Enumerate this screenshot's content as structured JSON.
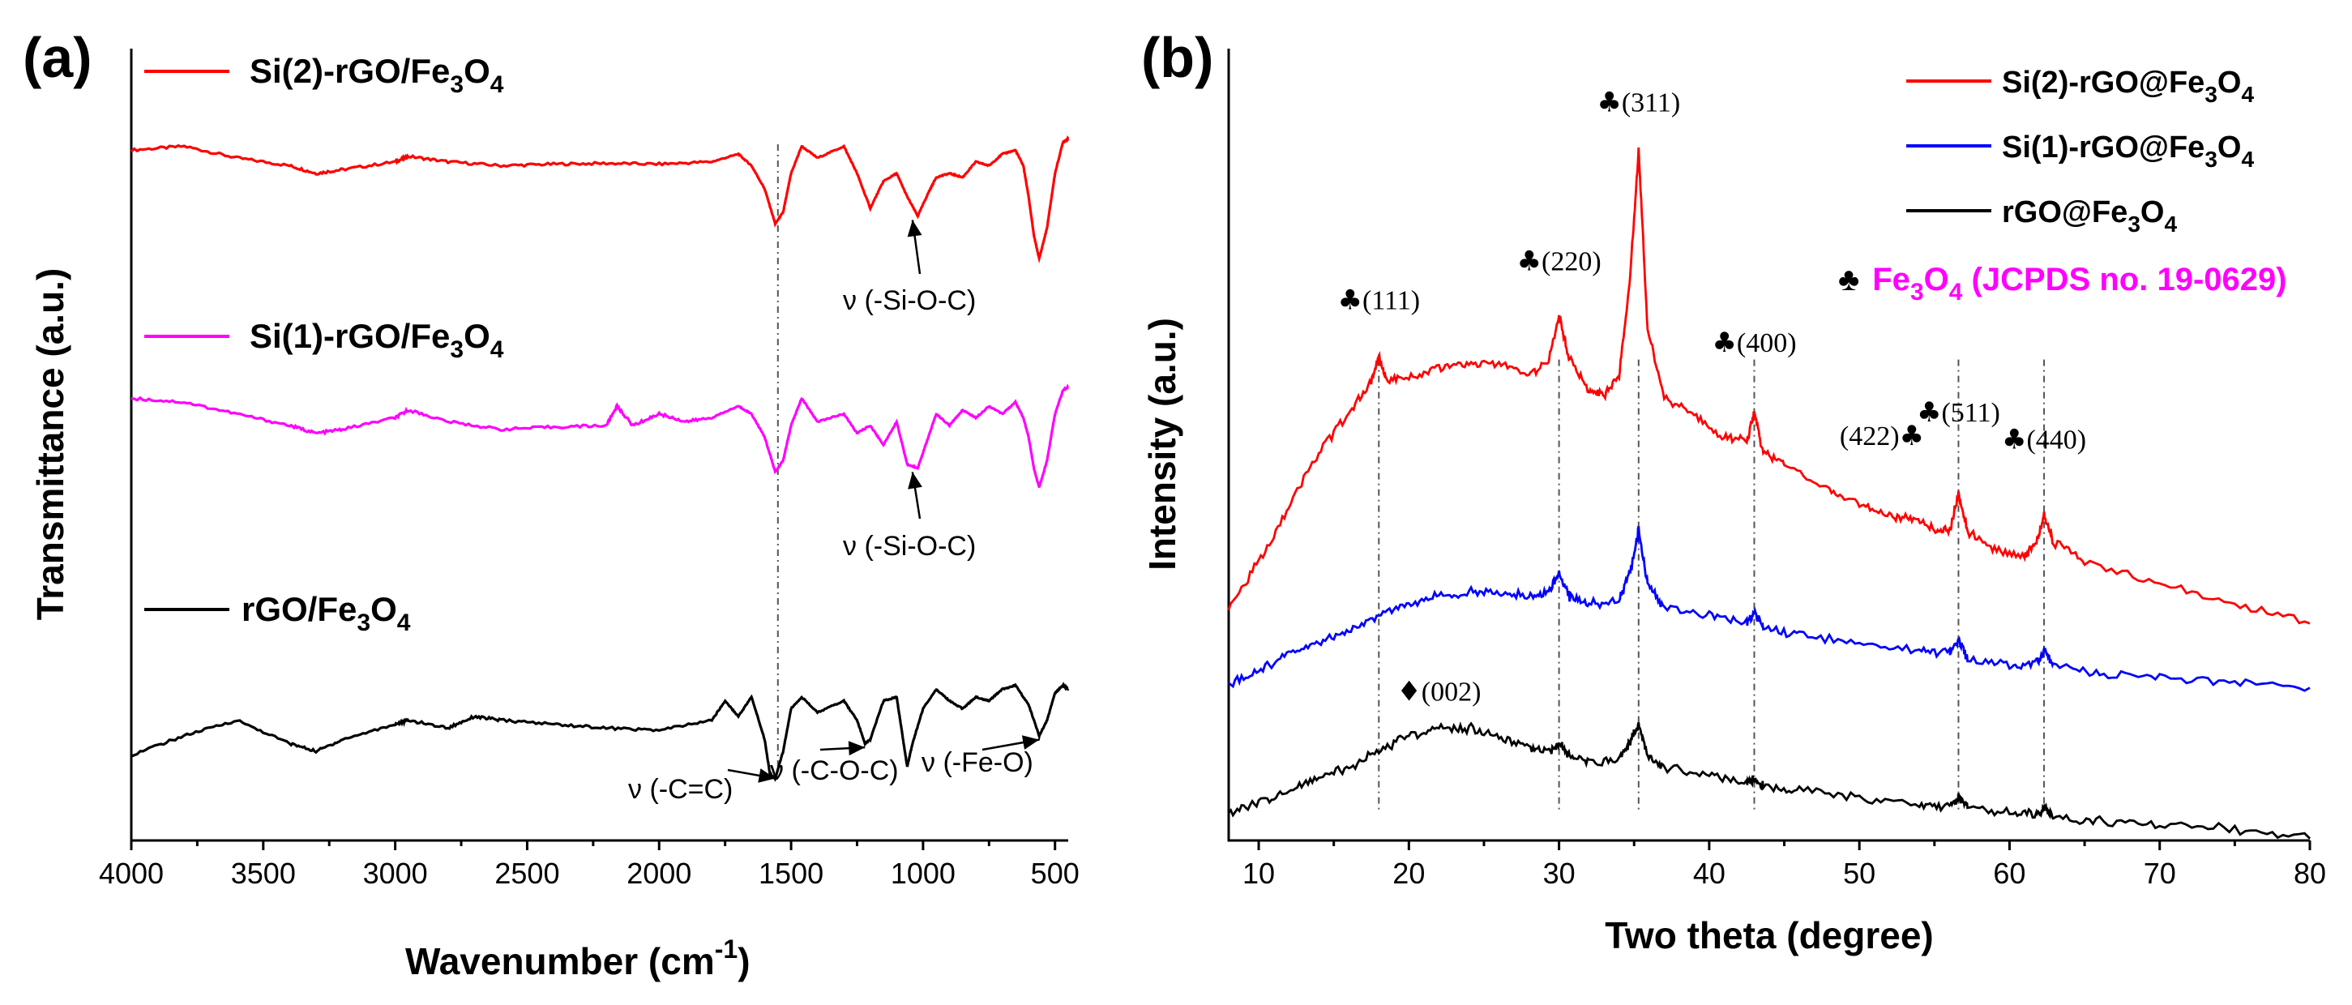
{
  "chart_data": [
    {
      "panel": "(a)",
      "type": "line",
      "title": "",
      "xlabel": "Wavenumber (cm-1)",
      "xlabel_main": "Wavenumber (cm",
      "xlabel_sup": "-1",
      "xlabel_close": ")",
      "ylabel": "Transmittance (a.u.)",
      "xlim": [
        4000,
        450
      ],
      "ylim": [
        0,
        10
      ],
      "xticks": [
        4000,
        3500,
        3000,
        2500,
        2000,
        1500,
        1000,
        500
      ],
      "grid": false,
      "legend_placement": "inline",
      "series": [
        {
          "name": "Si(2)-rGO/Fe3O4",
          "label_main": "Si(2)-rGO/Fe",
          "label_sub1": "3",
          "label_mid": "O",
          "label_sub2": "4",
          "color": "#ff0000",
          "x": [
            4000,
            3800,
            3600,
            3400,
            3300,
            3200,
            3000,
            2950,
            2800,
            2600,
            2400,
            2200,
            2000,
            1800,
            1700,
            1650,
            1600,
            1560,
            1530,
            1500,
            1460,
            1400,
            1300,
            1250,
            1200,
            1150,
            1100,
            1060,
            1020,
            980,
            950,
            900,
            850,
            800,
            750,
            700,
            650,
            620,
            600,
            580,
            560,
            530,
            500,
            470,
            450
          ],
          "y": [
            8.9,
            8.95,
            8.8,
            8.7,
            8.6,
            8.65,
            8.75,
            8.82,
            8.75,
            8.7,
            8.72,
            8.73,
            8.72,
            8.75,
            8.85,
            8.7,
            8.4,
            7.95,
            8.1,
            8.6,
            8.95,
            8.8,
            8.95,
            8.6,
            8.15,
            8.5,
            8.6,
            8.3,
            8.05,
            8.35,
            8.55,
            8.6,
            8.55,
            8.75,
            8.7,
            8.85,
            8.9,
            8.7,
            8.3,
            7.8,
            7.5,
            7.9,
            8.6,
            9.0,
            9.05
          ]
        },
        {
          "name": "Si(1)-rGO/Fe3O4",
          "label_main": "Si(1)-rGO/Fe",
          "label_sub1": "3",
          "label_mid": "O",
          "label_sub2": "4",
          "color": "#ff00ff",
          "x": [
            4000,
            3800,
            3600,
            3400,
            3300,
            3200,
            3000,
            2950,
            2800,
            2600,
            2400,
            2200,
            2160,
            2100,
            2000,
            1900,
            1800,
            1700,
            1650,
            1600,
            1560,
            1530,
            1500,
            1460,
            1400,
            1300,
            1250,
            1200,
            1150,
            1100,
            1060,
            1020,
            980,
            950,
            900,
            850,
            800,
            750,
            700,
            650,
            620,
            600,
            580,
            560,
            530,
            500,
            470,
            450
          ],
          "y": [
            5.7,
            5.65,
            5.5,
            5.35,
            5.25,
            5.3,
            5.45,
            5.55,
            5.4,
            5.3,
            5.33,
            5.35,
            5.6,
            5.35,
            5.5,
            5.4,
            5.45,
            5.6,
            5.5,
            5.2,
            4.75,
            4.9,
            5.35,
            5.7,
            5.4,
            5.5,
            5.25,
            5.35,
            5.1,
            5.4,
            4.85,
            4.8,
            5.2,
            5.5,
            5.35,
            5.55,
            5.45,
            5.6,
            5.5,
            5.65,
            5.45,
            5.2,
            4.8,
            4.55,
            4.9,
            5.5,
            5.8,
            5.85
          ]
        },
        {
          "name": "rGO/Fe3O4",
          "label_main": "rGO/Fe",
          "label_sub1": "3",
          "label_mid": "O",
          "label_sub2": "4",
          "color": "#000000",
          "x": [
            4000,
            3800,
            3600,
            3400,
            3300,
            3200,
            3000,
            2950,
            2800,
            2700,
            2600,
            2400,
            2200,
            2000,
            1800,
            1750,
            1700,
            1650,
            1600,
            1580,
            1560,
            1530,
            1500,
            1460,
            1400,
            1300,
            1250,
            1220,
            1200,
            1150,
            1100,
            1080,
            1060,
            1040,
            1000,
            950,
            900,
            850,
            800,
            750,
            700,
            650,
            600,
            560,
            530,
            500,
            470,
            450
          ],
          "y": [
            1.1,
            1.35,
            1.55,
            1.25,
            1.15,
            1.3,
            1.5,
            1.55,
            1.45,
            1.6,
            1.55,
            1.5,
            1.45,
            1.42,
            1.55,
            1.8,
            1.6,
            1.85,
            1.3,
            0.85,
            0.8,
            1.15,
            1.7,
            1.85,
            1.65,
            1.8,
            1.55,
            1.25,
            1.3,
            1.8,
            1.85,
            1.4,
            0.95,
            1.25,
            1.7,
            1.95,
            1.8,
            1.7,
            1.85,
            1.8,
            1.95,
            2.0,
            1.75,
            1.35,
            1.55,
            1.9,
            2.0,
            1.95
          ]
        }
      ],
      "reference_line_x": 1550,
      "annotations": [
        {
          "text": "ν (-Si-O-C)",
          "x": 1040,
          "y": 7.35,
          "arrow_to": [
            1040,
            8.0
          ]
        },
        {
          "text": "ν (-Si-O-C)",
          "x": 1040,
          "y": 4.0,
          "arrow_to": [
            1040,
            4.75
          ]
        },
        {
          "text": "ν (-C=C)",
          "x": 1820,
          "y": 0.2,
          "arrow_to": [
            1560,
            0.8
          ]
        },
        {
          "text": "ν (-C-O-C)",
          "x": 1340,
          "y": 0.25,
          "arrow_to": [
            1220,
            1.2
          ]
        },
        {
          "text": "ν (-Fe-O)",
          "x": 720,
          "y": 0.4,
          "arrow_to": [
            560,
            1.3
          ]
        }
      ]
    },
    {
      "panel": "(b)",
      "type": "line",
      "title": "",
      "xlabel": "Two theta (degree)",
      "ylabel": "Intensity (a.u.)",
      "xlim": [
        8,
        80
      ],
      "ylim": [
        0,
        10
      ],
      "xticks": [
        10,
        20,
        30,
        40,
        50,
        60,
        70,
        80
      ],
      "grid": false,
      "legend_placement": "top-right",
      "series": [
        {
          "name": "Si(2)-rGO@Fe3O4",
          "label_main": "Si(2)-rGO@Fe",
          "label_sub1": "3",
          "label_mid": "O",
          "label_sub2": "4",
          "color": "#ff0000",
          "x": [
            8,
            10,
            12,
            14,
            16,
            17.5,
            18,
            18.5,
            20,
            22,
            24,
            26,
            28,
            29.3,
            30,
            30.7,
            32,
            33,
            34,
            34.7,
            35.3,
            35.9,
            37,
            39,
            41,
            42.5,
            43,
            43.6,
            45,
            48,
            50,
            52,
            53.5,
            55,
            56,
            56.6,
            57.2,
            59,
            61,
            61.8,
            62.3,
            62.9,
            65,
            70,
            75,
            80
          ],
          "y": [
            3.0,
            3.6,
            4.3,
            5.0,
            5.5,
            5.9,
            6.25,
            5.95,
            5.95,
            6.1,
            6.15,
            6.15,
            6.0,
            6.2,
            6.75,
            6.2,
            5.8,
            5.75,
            6.0,
            7.2,
            8.9,
            6.6,
            5.7,
            5.5,
            5.2,
            5.15,
            5.5,
            5.0,
            4.85,
            4.5,
            4.35,
            4.2,
            4.15,
            4.0,
            4.0,
            4.45,
            4.0,
            3.75,
            3.65,
            3.85,
            4.2,
            3.85,
            3.6,
            3.3,
            3.05,
            2.8
          ]
        },
        {
          "name": "Si(1)-rGO@Fe3O4",
          "label_main": "Si(1)-rGO@Fe",
          "label_sub1": "3",
          "label_mid": "O",
          "label_sub2": "4",
          "color": "#0000ff",
          "x": [
            8,
            10,
            12,
            14,
            16,
            18,
            20,
            22,
            24,
            26,
            28,
            29.3,
            30,
            30.7,
            32,
            34,
            34.8,
            35.3,
            35.9,
            37,
            40,
            42.5,
            43,
            43.6,
            46,
            50,
            54,
            56,
            56.6,
            57.2,
            60,
            61.8,
            62.3,
            62.9,
            66,
            70,
            75,
            80
          ],
          "y": [
            2.0,
            2.2,
            2.4,
            2.55,
            2.7,
            2.9,
            3.05,
            3.15,
            3.2,
            3.2,
            3.15,
            3.2,
            3.45,
            3.15,
            3.05,
            3.1,
            3.5,
            4.0,
            3.3,
            3.0,
            2.9,
            2.8,
            2.95,
            2.75,
            2.65,
            2.55,
            2.45,
            2.4,
            2.6,
            2.35,
            2.25,
            2.3,
            2.45,
            2.25,
            2.15,
            2.1,
            2.05,
            1.95
          ]
        },
        {
          "name": "rGO@Fe3O4",
          "label_main": "rGO@Fe",
          "label_sub1": "3",
          "label_mid": "O",
          "label_sub2": "4",
          "color": "#000000",
          "x": [
            8,
            10,
            12,
            14,
            16,
            18,
            20,
            22,
            24,
            26,
            28,
            29.3,
            30,
            30.7,
            32,
            34,
            34.8,
            35.3,
            35.9,
            37,
            40,
            42.5,
            43,
            43.6,
            46,
            50,
            54,
            56,
            56.6,
            57.2,
            60,
            61.8,
            62.3,
            62.9,
            66,
            70,
            75,
            80
          ],
          "y": [
            0.35,
            0.5,
            0.65,
            0.8,
            0.95,
            1.15,
            1.35,
            1.45,
            1.45,
            1.35,
            1.2,
            1.15,
            1.25,
            1.1,
            1.0,
            1.05,
            1.3,
            1.5,
            1.1,
            0.95,
            0.85,
            0.75,
            0.8,
            0.7,
            0.65,
            0.55,
            0.45,
            0.45,
            0.55,
            0.45,
            0.35,
            0.35,
            0.42,
            0.3,
            0.25,
            0.2,
            0.15,
            0.05
          ]
        }
      ],
      "reference_lines_x": [
        18.0,
        30.0,
        35.3,
        43.0,
        56.6,
        62.3
      ],
      "peak_labels": [
        {
          "text": "(111)",
          "x": 18.0,
          "y": 6.85
        },
        {
          "text": "(220)",
          "x": 30.0,
          "y": 7.35
        },
        {
          "text": "(311)",
          "x": 35.3,
          "y": 9.4
        },
        {
          "text": "(400)",
          "x": 43.0,
          "y": 6.3
        },
        {
          "text": "(422)",
          "x": 51.5,
          "y": 5.1,
          "symbol_after": true
        },
        {
          "text": "(511)",
          "x": 56.6,
          "y": 5.4
        },
        {
          "text": "(440)",
          "x": 62.3,
          "y": 5.05
        },
        {
          "text": "(002)",
          "x": 22.0,
          "y": 1.8,
          "diamond": true
        }
      ],
      "phase_label": {
        "symbol": "♣",
        "formula_main": "Fe",
        "formula_sub1": "3",
        "formula_mid": "O",
        "formula_sub2": "4",
        "suffix": " (JCPDS no. 19-0629)",
        "color": "#ff00ff"
      },
      "club_symbol": "♣",
      "diamond_symbol": "♦"
    }
  ]
}
